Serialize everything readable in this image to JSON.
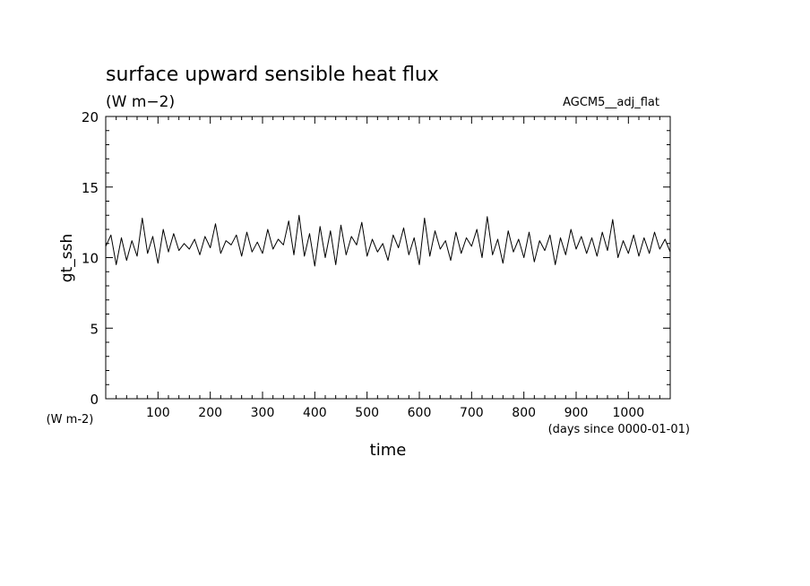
{
  "chart_data": {
    "type": "line",
    "title": "surface upward sensible heat flux",
    "subtitle": "(W m−2)",
    "source_label": "AGCM5__adj_flat",
    "xlabel": "time",
    "xunit": "(days since 0000-01-01)",
    "ylabel": "gt_ssh",
    "yunit": "(W m-2)",
    "xlim": [
      0,
      1080
    ],
    "ylim": [
      0,
      20
    ],
    "xticks": [
      100,
      200,
      300,
      400,
      500,
      600,
      700,
      800,
      900,
      1000
    ],
    "xtick_labels": [
      "100",
      "200",
      "300",
      "400",
      "500",
      "600",
      "700",
      "800",
      "900",
      "1000"
    ],
    "yticks": [
      0,
      5,
      10,
      15,
      20
    ],
    "ytick_labels": [
      "0",
      "5",
      "10",
      "15",
      "20"
    ],
    "grid": false,
    "color": "#000000",
    "series": [
      {
        "x": [
          0,
          10,
          20,
          30,
          40,
          50,
          60,
          70,
          80,
          90,
          100,
          110,
          120,
          130,
          140,
          150,
          160,
          170,
          180,
          190,
          200,
          210,
          220,
          230,
          240,
          250,
          260,
          270,
          280,
          290,
          300,
          310,
          320,
          330,
          340,
          350,
          360,
          370,
          380,
          390,
          400,
          410,
          420,
          430,
          440,
          450,
          460,
          470,
          480,
          490,
          500,
          510,
          520,
          530,
          540,
          550,
          560,
          570,
          580,
          590,
          600,
          610,
          620,
          630,
          640,
          650,
          660,
          670,
          680,
          690,
          700,
          710,
          720,
          730,
          740,
          750,
          760,
          770,
          780,
          790,
          800,
          810,
          820,
          830,
          840,
          850,
          860,
          870,
          880,
          890,
          900,
          910,
          920,
          930,
          940,
          950,
          960,
          970,
          980,
          990,
          1000,
          1010,
          1020,
          1030,
          1040,
          1050,
          1060,
          1070,
          1080
        ],
        "y": [
          10.8,
          11.6,
          9.5,
          11.4,
          9.8,
          11.2,
          10.1,
          12.8,
          10.3,
          11.5,
          9.6,
          12.0,
          10.4,
          11.7,
          10.5,
          11.0,
          10.6,
          11.3,
          10.2,
          11.5,
          10.7,
          12.4,
          10.3,
          11.2,
          10.9,
          11.6,
          10.1,
          11.8,
          10.4,
          11.1,
          10.3,
          12.0,
          10.6,
          11.3,
          10.9,
          12.6,
          10.2,
          13.0,
          10.1,
          11.7,
          9.4,
          12.2,
          10.0,
          11.9,
          9.5,
          12.3,
          10.2,
          11.5,
          10.9,
          12.5,
          10.1,
          11.3,
          10.4,
          11.0,
          9.8,
          11.6,
          10.7,
          12.1,
          10.2,
          11.4,
          9.5,
          12.8,
          10.1,
          11.9,
          10.6,
          11.2,
          9.8,
          11.8,
          10.3,
          11.4,
          10.8,
          12.0,
          10.0,
          12.9,
          10.2,
          11.3,
          9.6,
          11.9,
          10.4,
          11.3,
          10.0,
          11.8,
          9.7,
          11.2,
          10.5,
          11.6,
          9.5,
          11.4,
          10.2,
          12.0,
          10.6,
          11.5,
          10.3,
          11.4,
          10.1,
          11.8,
          10.5,
          12.7,
          10.0,
          11.2,
          10.3,
          11.6,
          10.1,
          11.4,
          10.3,
          11.8,
          10.6,
          11.3,
          10.4
        ]
      }
    ]
  }
}
